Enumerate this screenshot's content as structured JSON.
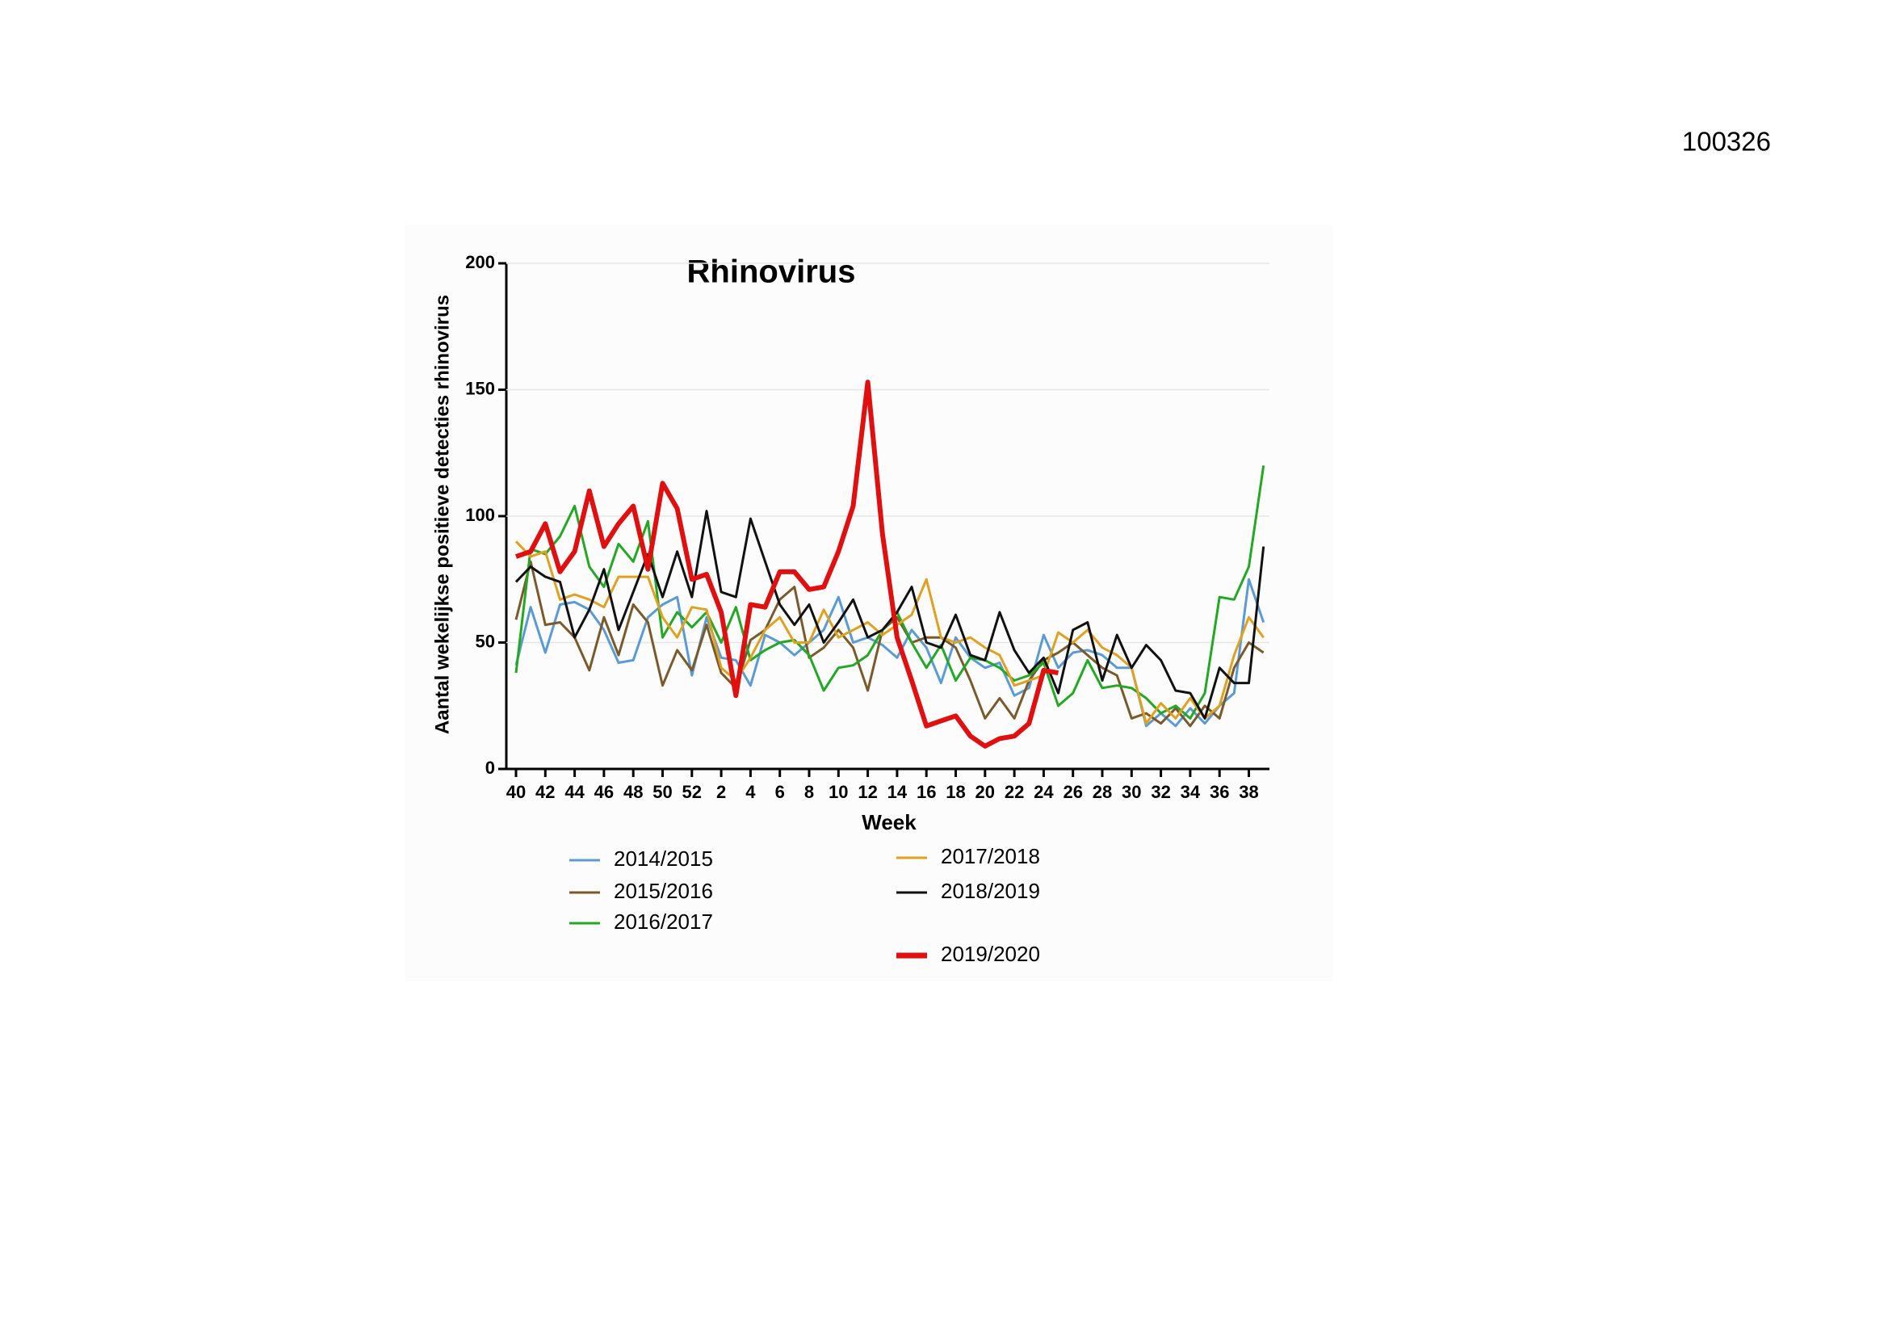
{
  "page_id": "100326",
  "chart_data": {
    "type": "line",
    "title": "Rhinovirus",
    "x_label": "Week",
    "y_label": "Aantal wekelijkse positieve detecties rhinovirus",
    "categories": [
      40,
      null,
      42,
      null,
      44,
      null,
      46,
      null,
      48,
      null,
      50,
      null,
      52,
      null,
      2,
      null,
      4,
      null,
      6,
      null,
      8,
      null,
      10,
      null,
      12,
      null,
      14,
      null,
      16,
      null,
      18,
      null,
      20,
      null,
      22,
      null,
      24,
      null,
      26,
      null,
      28,
      null,
      30,
      null,
      32,
      null,
      34,
      null,
      36,
      null,
      38,
      null
    ],
    "ylim": [
      0,
      200
    ],
    "yticks": [
      0,
      50,
      100,
      150,
      200
    ],
    "grid": true,
    "series": [
      {
        "name": "2014/2015",
        "color": "#5b9bd5",
        "values": [
          41,
          64,
          46,
          65,
          66,
          63,
          55,
          42,
          43,
          60,
          65,
          68,
          37,
          60,
          44,
          43,
          33,
          53,
          50,
          45,
          50,
          55,
          68,
          50,
          52,
          49,
          44,
          55,
          48,
          34,
          52,
          44,
          40,
          42,
          29,
          32,
          53,
          40,
          46,
          47,
          45,
          40,
          40,
          17,
          22,
          17,
          24,
          18,
          25,
          30,
          75,
          58
        ]
      },
      {
        "name": "2015/2016",
        "color": "#7a5a2a",
        "values": [
          59,
          82,
          57,
          58,
          52,
          39,
          60,
          45,
          65,
          58,
          33,
          47,
          39,
          57,
          38,
          32,
          51,
          55,
          67,
          72,
          44,
          48,
          55,
          48,
          31,
          55,
          60,
          50,
          52,
          52,
          48,
          35,
          20,
          28,
          20,
          35,
          43,
          46,
          50,
          45,
          40,
          37,
          20,
          22,
          18,
          24,
          17,
          25,
          20,
          40,
          50,
          46
        ]
      },
      {
        "name": "2016/2017",
        "color": "#22a822",
        "values": [
          38,
          87,
          85,
          92,
          104,
          80,
          72,
          89,
          82,
          98,
          52,
          62,
          56,
          62,
          50,
          64,
          43,
          47,
          50,
          51,
          45,
          31,
          40,
          41,
          45,
          55,
          62,
          50,
          40,
          49,
          35,
          44,
          43,
          40,
          35,
          37,
          42,
          25,
          30,
          43,
          32,
          33,
          32,
          28,
          22,
          25,
          20,
          30,
          68,
          67,
          80,
          120
        ]
      },
      {
        "name": "2017/2018",
        "color": "#e0a020",
        "values": [
          90,
          84,
          86,
          67,
          69,
          67,
          64,
          76,
          76,
          76,
          60,
          52,
          64,
          63,
          40,
          35,
          44,
          55,
          60,
          50,
          50,
          63,
          52,
          55,
          58,
          53,
          57,
          61,
          75,
          52,
          50,
          52,
          48,
          45,
          33,
          35,
          37,
          54,
          50,
          55,
          48,
          45,
          40,
          18,
          26,
          20,
          28,
          20,
          25,
          45,
          60,
          52
        ]
      },
      {
        "name": "2018/2019",
        "color": "#111111",
        "values": [
          74,
          80,
          76,
          74,
          52,
          63,
          79,
          55,
          70,
          85,
          68,
          86,
          68,
          102,
          70,
          68,
          99,
          82,
          65,
          57,
          65,
          50,
          58,
          67,
          52,
          55,
          62,
          72,
          50,
          48,
          61,
          45,
          43,
          62,
          47,
          38,
          44,
          30,
          55,
          58,
          35,
          53,
          40,
          49,
          43,
          31,
          30,
          20,
          40,
          34,
          34,
          88
        ]
      },
      {
        "name": "2019/2020",
        "color": "#e01010",
        "values": [
          84,
          86,
          97,
          78,
          86,
          110,
          88,
          97,
          104,
          79,
          113,
          103,
          75,
          77,
          62,
          29,
          65,
          64,
          78,
          78,
          71,
          72,
          86,
          104,
          153,
          93,
          52,
          35,
          17,
          19,
          21,
          13,
          9,
          12,
          13,
          18,
          39,
          38,
          null,
          null,
          null,
          null,
          null,
          null,
          null,
          null,
          null,
          null,
          null,
          null,
          null,
          null
        ]
      }
    ]
  }
}
